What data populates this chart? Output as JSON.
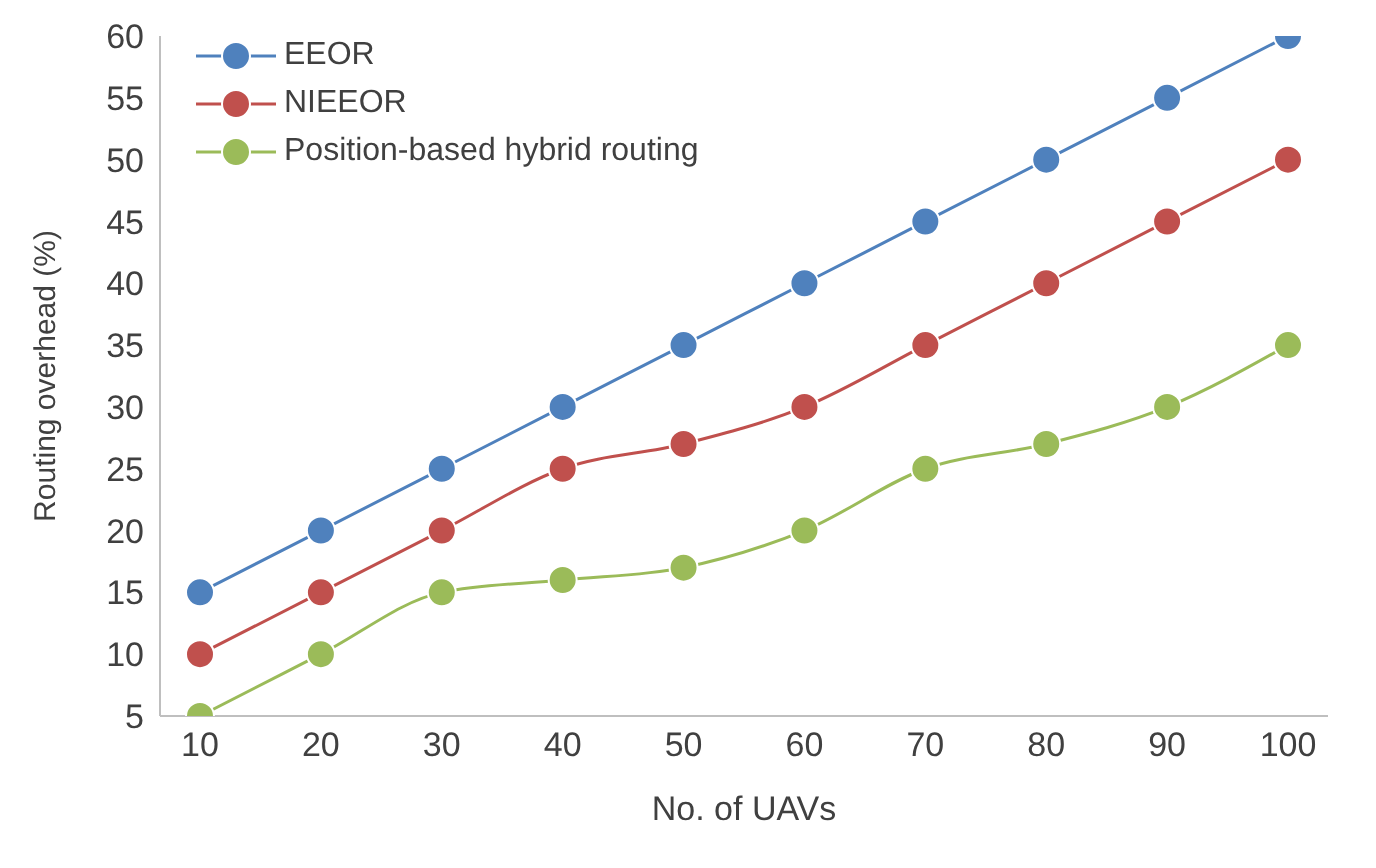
{
  "chart_data": {
    "type": "line",
    "xlabel": "No. of UAVs",
    "ylabel": "Routing overhead (%)",
    "categories": [
      "10",
      "20",
      "30",
      "40",
      "50",
      "60",
      "70",
      "80",
      "90",
      "100"
    ],
    "series": [
      {
        "name": "EEOR",
        "color": "#4f81bd",
        "values": [
          15,
          20,
          25,
          30,
          35,
          40,
          45,
          50,
          55,
          60
        ]
      },
      {
        "name": "NIEEOR",
        "color": "#c0504d",
        "values": [
          10,
          15,
          20,
          25,
          27,
          30,
          35,
          40,
          45,
          50
        ]
      },
      {
        "name": "Position-based hybrid routing",
        "color": "#9bbb59",
        "values": [
          5,
          10,
          15,
          16,
          17,
          20,
          25,
          27,
          30,
          35
        ]
      }
    ],
    "ylim": [
      5,
      60
    ],
    "yticks": [
      5,
      10,
      15,
      20,
      25,
      30,
      35,
      40,
      45,
      50,
      55,
      60
    ],
    "grid": false,
    "legend": "top left",
    "marker": "circle",
    "line_style": "solid"
  }
}
